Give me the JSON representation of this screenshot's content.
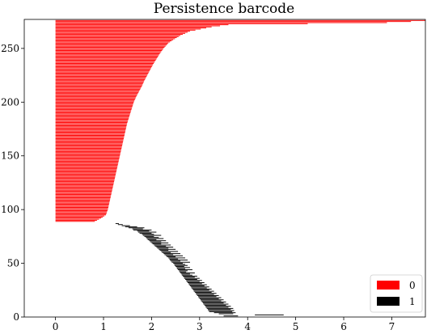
{
  "chart_data": {
    "type": "bar",
    "orientation": "horizontal",
    "title": "Persistence barcode",
    "xlabel": "",
    "ylabel": "",
    "xlim": [
      -0.65,
      7.7
    ],
    "ylim": [
      0,
      277
    ],
    "xticks": [
      0,
      1,
      2,
      3,
      4,
      5,
      6,
      7
    ],
    "yticks": [
      0,
      50,
      100,
      150,
      200,
      250
    ],
    "grid": false,
    "legend_position": "bottom-right",
    "series": [
      {
        "name": "0",
        "color": "#ff0000",
        "bar_count": 188,
        "index_range": [
          89,
          276
        ],
        "birth": 0,
        "death_profile": [
          [
            89,
            0.82
          ],
          [
            92,
            0.95
          ],
          [
            95,
            1.05
          ],
          [
            100,
            1.09
          ],
          [
            110,
            1.14
          ],
          [
            120,
            1.19
          ],
          [
            130,
            1.24
          ],
          [
            140,
            1.29
          ],
          [
            150,
            1.34
          ],
          [
            160,
            1.39
          ],
          [
            170,
            1.44
          ],
          [
            180,
            1.49
          ],
          [
            190,
            1.56
          ],
          [
            200,
            1.63
          ],
          [
            205,
            1.68
          ],
          [
            210,
            1.74
          ],
          [
            215,
            1.8
          ],
          [
            220,
            1.85
          ],
          [
            225,
            1.91
          ],
          [
            230,
            1.97
          ],
          [
            235,
            2.03
          ],
          [
            240,
            2.1
          ],
          [
            245,
            2.17
          ],
          [
            250,
            2.25
          ],
          [
            255,
            2.35
          ],
          [
            258,
            2.45
          ],
          [
            262,
            2.6
          ],
          [
            266,
            2.8
          ],
          [
            270,
            3.25
          ],
          [
            272,
            3.6
          ],
          [
            274,
            6.9
          ],
          [
            275,
            7.4
          ],
          [
            276,
            7.7
          ]
        ]
      },
      {
        "name": "1",
        "color": "#000000",
        "bars": [
          [
            87,
            1.25,
            1.32
          ],
          [
            86,
            1.3,
            1.4
          ],
          [
            85,
            1.38,
            1.55
          ],
          [
            84,
            1.45,
            1.7
          ],
          [
            83,
            1.52,
            1.85
          ],
          [
            82,
            1.6,
            1.82
          ],
          [
            81,
            1.62,
            2.0
          ],
          [
            80,
            1.7,
            1.95
          ],
          [
            79,
            1.72,
            2.1
          ],
          [
            78,
            1.75,
            2.0
          ],
          [
            77,
            1.8,
            2.05
          ],
          [
            76,
            1.82,
            2.2
          ],
          [
            75,
            1.85,
            2.05
          ],
          [
            74,
            1.88,
            2.15
          ],
          [
            73,
            1.9,
            2.25
          ],
          [
            72,
            1.92,
            2.1
          ],
          [
            71,
            1.95,
            2.3
          ],
          [
            70,
            1.97,
            2.2
          ],
          [
            69,
            2.0,
            2.35
          ],
          [
            68,
            2.02,
            2.2
          ],
          [
            67,
            2.05,
            2.4
          ],
          [
            66,
            2.07,
            2.3
          ],
          [
            65,
            2.1,
            2.45
          ],
          [
            64,
            2.12,
            2.35
          ],
          [
            63,
            2.15,
            2.5
          ],
          [
            62,
            2.17,
            2.35
          ],
          [
            61,
            2.2,
            2.55
          ],
          [
            60,
            2.22,
            2.4
          ],
          [
            59,
            2.25,
            2.6
          ],
          [
            58,
            2.27,
            2.45
          ],
          [
            57,
            2.3,
            2.65
          ],
          [
            56,
            2.32,
            2.5
          ],
          [
            55,
            2.35,
            2.7
          ],
          [
            54,
            2.37,
            2.55
          ],
          [
            53,
            2.38,
            2.75
          ],
          [
            52,
            2.4,
            2.6
          ],
          [
            51,
            2.42,
            2.8
          ],
          [
            50,
            2.45,
            2.65
          ],
          [
            49,
            2.47,
            2.7
          ],
          [
            48,
            2.48,
            2.75
          ],
          [
            47,
            2.5,
            2.68
          ],
          [
            46,
            2.52,
            2.8
          ],
          [
            45,
            2.53,
            2.7
          ],
          [
            44,
            2.55,
            2.85
          ],
          [
            43,
            2.57,
            2.75
          ],
          [
            42,
            2.58,
            2.72
          ],
          [
            41,
            2.6,
            2.9
          ],
          [
            40,
            2.62,
            2.8
          ],
          [
            39,
            2.63,
            2.85
          ],
          [
            38,
            2.65,
            2.95
          ],
          [
            37,
            2.67,
            2.9
          ],
          [
            36,
            2.68,
            3.0
          ],
          [
            35,
            2.7,
            2.95
          ],
          [
            34,
            2.72,
            3.05
          ],
          [
            33,
            2.73,
            3.0
          ],
          [
            32,
            2.75,
            3.1
          ],
          [
            31,
            2.77,
            3.05
          ],
          [
            30,
            2.78,
            3.15
          ],
          [
            29,
            2.8,
            3.1
          ],
          [
            28,
            2.82,
            3.2
          ],
          [
            27,
            2.83,
            3.15
          ],
          [
            26,
            2.85,
            3.25
          ],
          [
            25,
            2.87,
            3.2
          ],
          [
            24,
            2.88,
            3.3
          ],
          [
            23,
            2.9,
            3.25
          ],
          [
            22,
            2.92,
            3.35
          ],
          [
            21,
            2.93,
            3.3
          ],
          [
            20,
            2.95,
            3.4
          ],
          [
            19,
            2.97,
            3.35
          ],
          [
            18,
            2.98,
            3.45
          ],
          [
            17,
            3.0,
            3.4
          ],
          [
            16,
            3.02,
            3.5
          ],
          [
            15,
            3.03,
            3.45
          ],
          [
            14,
            3.05,
            3.55
          ],
          [
            13,
            3.07,
            3.5
          ],
          [
            12,
            3.08,
            3.6
          ],
          [
            11,
            3.1,
            3.55
          ],
          [
            10,
            3.12,
            3.65
          ],
          [
            9,
            3.13,
            3.6
          ],
          [
            8,
            3.15,
            3.7
          ],
          [
            7,
            3.17,
            3.65
          ],
          [
            6,
            3.18,
            3.72
          ],
          [
            5,
            3.2,
            3.68
          ],
          [
            4,
            3.3,
            3.75
          ],
          [
            3,
            3.4,
            3.7
          ],
          [
            2,
            4.15,
            4.75
          ],
          [
            1,
            3.5,
            3.8
          ]
        ]
      }
    ]
  }
}
